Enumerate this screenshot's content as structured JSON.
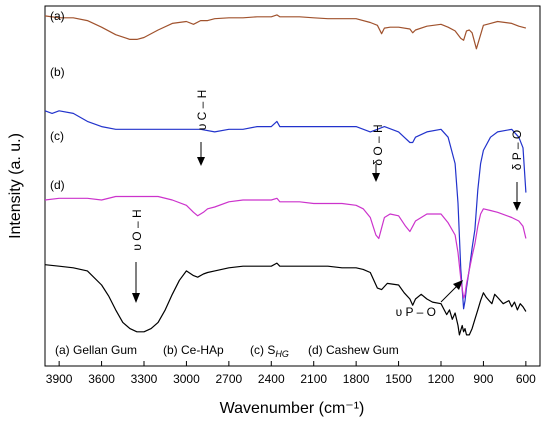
{
  "chart_data": {
    "type": "line",
    "xlabel": "Wavenumber (cm⁻¹)",
    "ylabel": "Intensity (a. u.)",
    "xlim": [
      4000,
      500
    ],
    "x_reversed": true,
    "x_ticks": [
      3900,
      3600,
      3300,
      3000,
      2700,
      2400,
      2100,
      1800,
      1500,
      1200,
      900,
      600
    ],
    "y_ticks_shown": false,
    "grid": false,
    "panel_labels": [
      "(a)",
      "(b)",
      "(c)",
      "(d)"
    ],
    "legend_text": {
      "a": "(a) Gellan Gum",
      "b": "(b) Ce-HAp",
      "c_prefix": "(c) S",
      "c_sub": "HG",
      "d": "(d) Cashew Gum"
    },
    "annotations": [
      {
        "label": "υ C – H",
        "x": 2920
      },
      {
        "label": "δ O – H",
        "x": 1640
      },
      {
        "label": "δ P – O",
        "x": 600
      },
      {
        "label": "υ O – H",
        "x": 3400
      },
      {
        "label": "υ P – O",
        "x": 1040
      }
    ],
    "series": [
      {
        "color": "#a0522d",
        "x": [
          4000,
          3900,
          3800,
          3700,
          3600,
          3500,
          3400,
          3350,
          3300,
          3200,
          3100,
          3000,
          2950,
          2900,
          2850,
          2800,
          2700,
          2600,
          2500,
          2400,
          2360,
          2340,
          2300,
          2200,
          2100,
          2000,
          1900,
          1800,
          1700,
          1650,
          1620,
          1600,
          1560,
          1500,
          1420,
          1400,
          1380,
          1300,
          1200,
          1150,
          1100,
          1060,
          1040,
          1020,
          1000,
          980,
          950,
          900,
          850,
          800,
          700,
          650,
          600
        ],
        "y": [
          98,
          96,
          96,
          93,
          86,
          78,
          73,
          73,
          75,
          83,
          90,
          92,
          89,
          93,
          93,
          95,
          96,
          96,
          97,
          97,
          99,
          97,
          97,
          97,
          96,
          95,
          95,
          95,
          91,
          88,
          79,
          85,
          86,
          86,
          84,
          80,
          83,
          87,
          89,
          86,
          82,
          74,
          72,
          82,
          83,
          80,
          63,
          88,
          90,
          92,
          90,
          87,
          85
        ]
      },
      {
        "color": "#2233cc",
        "x": [
          4000,
          3950,
          3900,
          3800,
          3700,
          3600,
          3500,
          3400,
          3300,
          3200,
          3100,
          3000,
          2900,
          2800,
          2700,
          2600,
          2500,
          2400,
          2360,
          2340,
          2300,
          2200,
          2100,
          2000,
          1900,
          1800,
          1700,
          1650,
          1600,
          1500,
          1460,
          1420,
          1400,
          1380,
          1300,
          1200,
          1150,
          1100,
          1080,
          1060,
          1040,
          1030,
          1020,
          1000,
          980,
          960,
          940,
          920,
          900,
          850,
          800,
          700,
          650,
          620,
          600
        ],
        "y": [
          80,
          79,
          80,
          79,
          76,
          74,
          73,
          73,
          73,
          73,
          73,
          73,
          73,
          72,
          73,
          73,
          74,
          74,
          76,
          74,
          74,
          74,
          74,
          74,
          74,
          74,
          72,
          73,
          74,
          72,
          70,
          68,
          68,
          70,
          72,
          73,
          70,
          60,
          45,
          20,
          5,
          8,
          13,
          20,
          28,
          35,
          50,
          60,
          65,
          70,
          72,
          73,
          70,
          66,
          49
        ]
      },
      {
        "color": "#cc33cc",
        "x": [
          4000,
          3900,
          3800,
          3700,
          3600,
          3500,
          3400,
          3300,
          3200,
          3100,
          3000,
          2950,
          2920,
          2880,
          2850,
          2800,
          2700,
          2600,
          2500,
          2400,
          2360,
          2340,
          2300,
          2200,
          2100,
          2000,
          1900,
          1800,
          1750,
          1700,
          1680,
          1660,
          1640,
          1600,
          1560,
          1500,
          1450,
          1420,
          1400,
          1380,
          1300,
          1200,
          1150,
          1100,
          1080,
          1060,
          1040,
          1030,
          1020,
          1000,
          980,
          960,
          940,
          920,
          900,
          850,
          800,
          700,
          650,
          620,
          600
        ],
        "y": [
          60,
          61,
          61,
          61,
          60,
          62,
          62,
          62,
          62,
          60,
          57,
          53,
          51,
          53,
          55,
          56,
          59,
          60,
          60,
          60,
          61,
          59,
          59,
          59,
          58,
          58,
          58,
          57,
          55,
          50,
          45,
          40,
          38,
          50,
          52,
          51,
          45,
          42,
          45,
          48,
          52,
          52,
          47,
          40,
          30,
          15,
          4,
          6,
          12,
          20,
          28,
          35,
          45,
          52,
          55,
          54,
          53,
          50,
          48,
          45,
          38
        ]
      },
      {
        "color": "#000000",
        "x": [
          4000,
          3900,
          3800,
          3700,
          3600,
          3550,
          3500,
          3450,
          3400,
          3350,
          3300,
          3250,
          3200,
          3150,
          3100,
          3050,
          3000,
          2950,
          2920,
          2880,
          2850,
          2800,
          2700,
          2600,
          2500,
          2400,
          2360,
          2340,
          2300,
          2200,
          2100,
          2000,
          1900,
          1800,
          1750,
          1700,
          1650,
          1620,
          1580,
          1500,
          1460,
          1420,
          1400,
          1380,
          1340,
          1300,
          1260,
          1200,
          1160,
          1140,
          1120,
          1100,
          1080,
          1070,
          1060,
          1050,
          1040,
          1030,
          1020,
          1000,
          980,
          960,
          940,
          920,
          900,
          880,
          860,
          840,
          820,
          800,
          760,
          720,
          700,
          680,
          660,
          640,
          620,
          600
        ],
        "y": [
          47,
          46,
          45,
          43,
          34,
          27,
          18,
          10,
          6,
          4,
          4,
          6,
          10,
          18,
          28,
          37,
          43,
          40,
          39,
          41,
          42,
          43,
          45,
          46,
          46,
          46,
          48,
          46,
          46,
          46,
          46,
          46,
          45,
          45,
          44,
          42,
          32,
          31,
          35,
          34,
          29,
          25,
          21,
          25,
          28,
          25,
          23,
          22,
          15,
          18,
          12,
          16,
          8,
          2,
          5,
          8,
          4,
          6,
          2,
          2,
          6,
          12,
          18,
          24,
          29,
          26,
          24,
          22,
          28,
          26,
          22,
          24,
          20,
          23,
          18,
          22,
          20,
          17
        ]
      }
    ]
  }
}
